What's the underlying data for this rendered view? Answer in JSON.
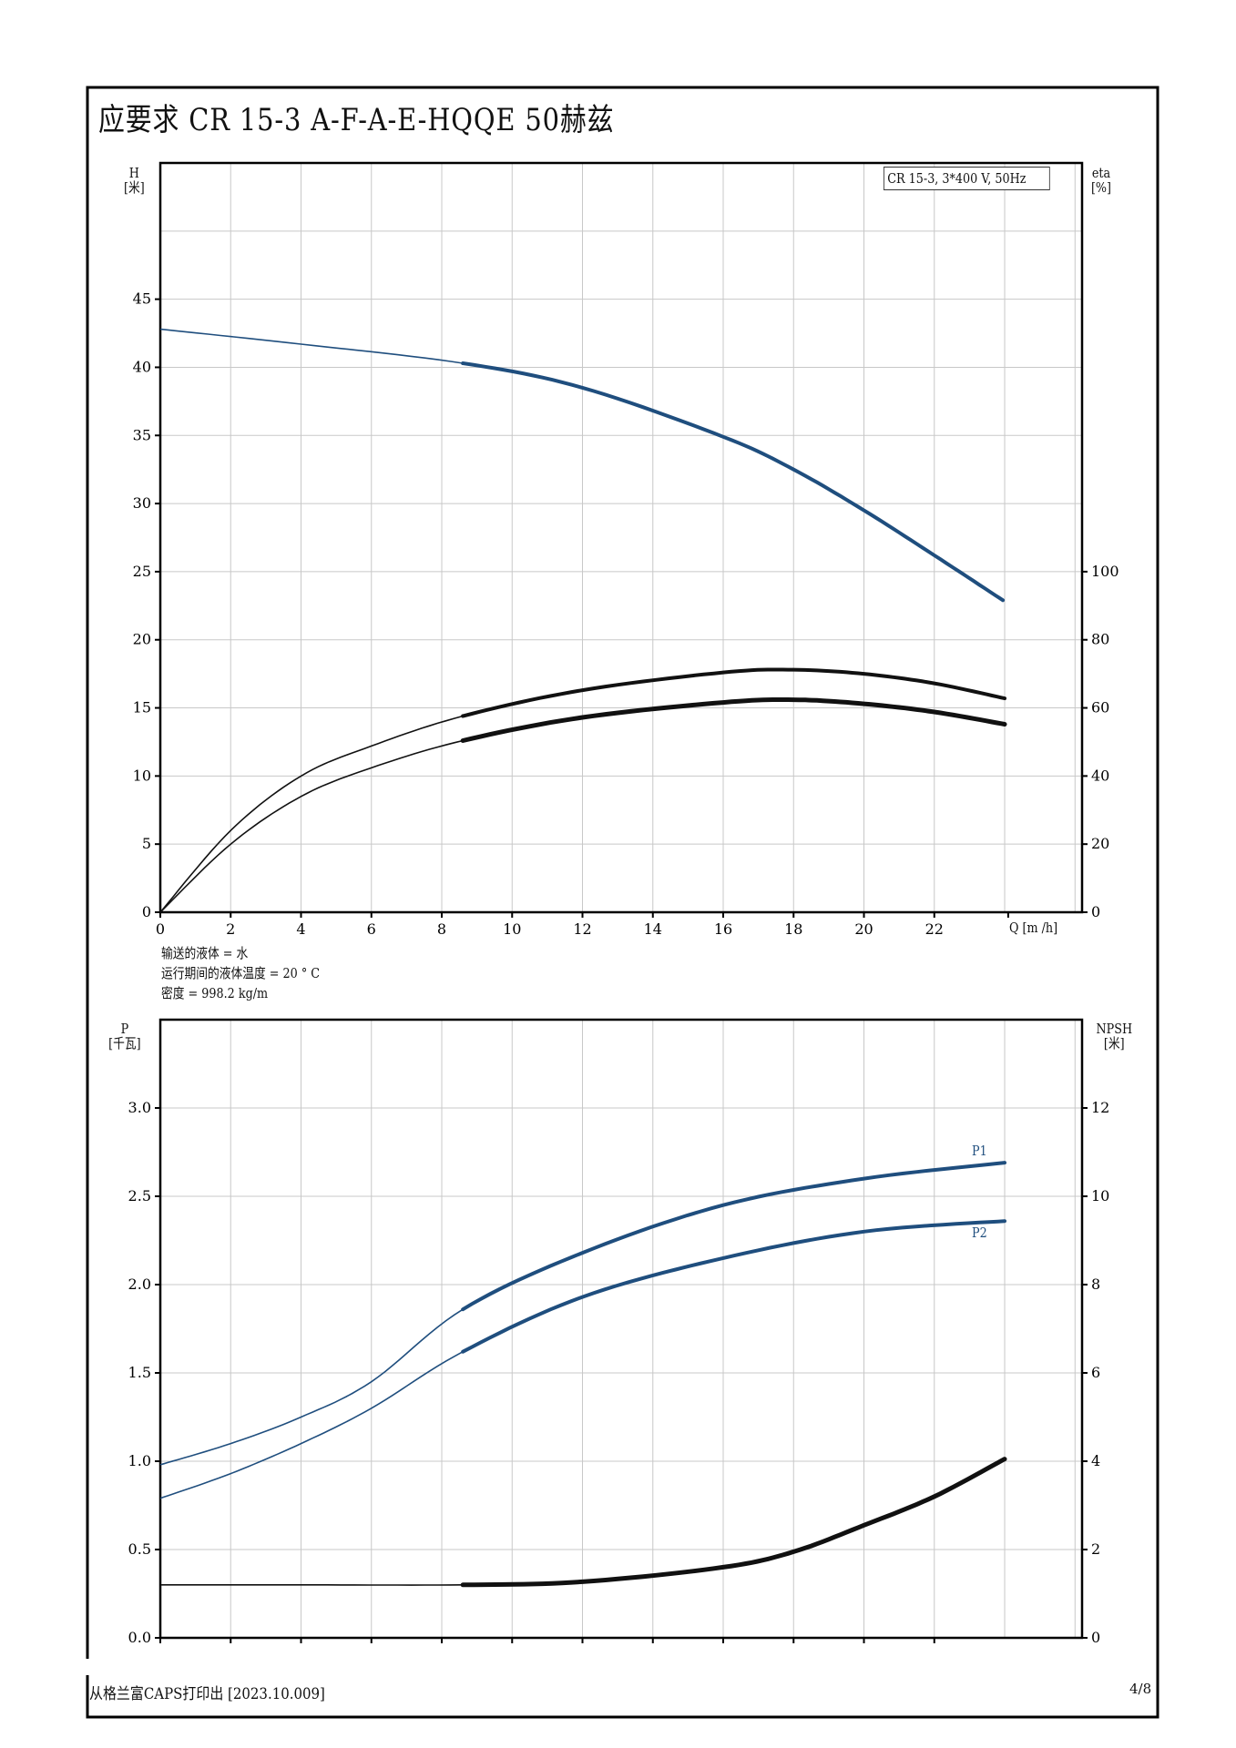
{
  "title": "应要求 CR 15-3 A-F-A-E-HQQE 50赫兹",
  "footer": {
    "left": "从格兰富CAPS打印出 [2023.10.009]",
    "right": "4/8"
  },
  "fluid_info": [
    "输送的液体 = 水",
    "运行期间的液体温度 = 20 ° C",
    "密度 = 998.2 kg/m"
  ],
  "colors": {
    "blue": "#1f4e7e",
    "black": "#111111",
    "grid": "#c8c8c8"
  },
  "chart_data": [
    {
      "type": "line",
      "legend": "CR 15-3, 3*400 V, 50Hz",
      "xlabel": "Q [m  /h]",
      "ylabel": [
        "H",
        "[米]"
      ],
      "y2label": [
        "eta",
        "[%]"
      ],
      "xticks": [
        0,
        2,
        4,
        6,
        8,
        10,
        12,
        14,
        16,
        18,
        20,
        22
      ],
      "yticks": [
        0,
        5,
        10,
        15,
        20,
        25,
        30,
        35,
        40,
        45
      ],
      "y2ticks": [
        0,
        20,
        40,
        60,
        80,
        100
      ],
      "xlim": [
        0,
        26.2
      ],
      "ylim": [
        0,
        55
      ],
      "y2lim": [
        0,
        220
      ],
      "operating_range_start_q": 8.6,
      "series": [
        {
          "name": "H",
          "axis": "left",
          "color": "#1f4e7e",
          "x": [
            0,
            4,
            8.6,
            12,
            16,
            18,
            20,
            22,
            23.95
          ],
          "y": [
            42.8,
            41.7,
            40.3,
            38.5,
            34.9,
            32.5,
            29.5,
            26.2,
            22.9
          ]
        },
        {
          "name": "eta-upper",
          "axis": "right",
          "color": "#111111",
          "x": [
            0,
            2,
            4,
            6,
            8.6,
            12,
            16,
            18,
            20,
            22,
            24
          ],
          "y": [
            0,
            24,
            40,
            48.8,
            57.6,
            65.2,
            70.4,
            71.2,
            70,
            67.2,
            62.8
          ]
        },
        {
          "name": "eta-lower",
          "axis": "right",
          "color": "#111111",
          "x": [
            0,
            2,
            4,
            6,
            8.6,
            12,
            16,
            18,
            20,
            22,
            24
          ],
          "y": [
            0,
            20,
            34,
            42.4,
            50.4,
            57.2,
            61.6,
            62.4,
            61.2,
            58.8,
            55.2
          ]
        }
      ]
    },
    {
      "type": "line",
      "ylabel": [
        "P",
        "[千瓦]"
      ],
      "y2label": [
        "NPSH",
        "[米]"
      ],
      "xticks": [
        0,
        2,
        4,
        6,
        8,
        10,
        12,
        14,
        16,
        18,
        20,
        22
      ],
      "yticks": [
        "0.0",
        "0.5",
        "1.0",
        "1.5",
        "2.0",
        "2.5",
        "3.0"
      ],
      "y2ticks": [
        0,
        2,
        4,
        6,
        8,
        10,
        12
      ],
      "xlim": [
        0,
        26.2
      ],
      "ylim": [
        0,
        3.5
      ],
      "y2lim": [
        0,
        14
      ],
      "operating_range_start_q": 8.6,
      "series": [
        {
          "name": "P1",
          "label": "P1",
          "axis": "left",
          "color": "#1f4e7e",
          "x": [
            0,
            2,
            4,
            6,
            8.6,
            12,
            16,
            20,
            24
          ],
          "y": [
            0.98,
            1.1,
            1.25,
            1.45,
            1.86,
            2.18,
            2.45,
            2.6,
            2.69
          ]
        },
        {
          "name": "P2",
          "label": "P2",
          "axis": "left",
          "color": "#1f4e7e",
          "x": [
            0,
            2,
            4,
            6,
            8.6,
            12,
            16,
            20,
            24
          ],
          "y": [
            0.79,
            0.93,
            1.1,
            1.3,
            1.62,
            1.93,
            2.15,
            2.3,
            2.36
          ]
        },
        {
          "name": "NPSH",
          "axis": "right",
          "color": "#111111",
          "x": [
            0,
            4,
            8.6,
            12,
            16,
            18,
            20,
            22,
            24
          ],
          "y": [
            1.2,
            1.2,
            1.2,
            1.27,
            1.6,
            1.95,
            2.55,
            3.2,
            4.05
          ]
        }
      ]
    }
  ]
}
